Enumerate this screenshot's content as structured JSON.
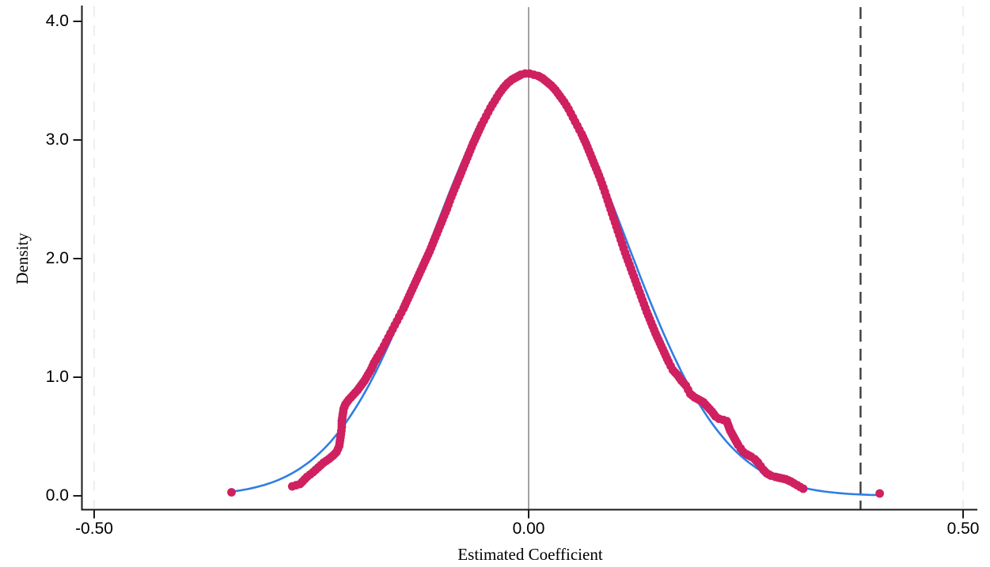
{
  "figure": {
    "background_color": "#ffffff",
    "title": "",
    "legend": null
  },
  "chart_data": {
    "type": "scatter",
    "description": "Density of estimated placebo coefficients (dots) with fitted normal density curve, vertical zero line and dashed vertical line at the actual treatment estimate",
    "title": "",
    "xlabel": "Estimated Coefficient",
    "ylabel": "Density",
    "xlim": [
      -0.515,
      0.517
    ],
    "ylim": [
      -0.12,
      4.13
    ],
    "grid": "vertical light dashed gridlines at x tick positions -0.50 and 0.50",
    "x_tick_values": [
      -0.5,
      0.0,
      0.5
    ],
    "x_tick_labels": [
      "-0.50",
      "0.00",
      "0.50"
    ],
    "y_tick_values": [
      0.0,
      1.0,
      2.0,
      3.0,
      4.0
    ],
    "y_tick_labels": [
      "0.0",
      "1.0",
      "2.0",
      "3.0",
      "4.0"
    ],
    "gridline_x_values": [
      -0.5,
      0.5
    ],
    "gridline_color": "#e9e9e9",
    "axis_color": "#1a1a1a",
    "reference_lines": [
      {
        "name": "zero-line",
        "x": 0.0,
        "style": "solid",
        "color": "#8c8c8c",
        "width": 1.6
      },
      {
        "name": "treatment-estimate-line",
        "x": 0.382,
        "style": "dashed",
        "color": "#3d3d3d",
        "width": 2.4
      }
    ],
    "series": [
      {
        "name": "normal-density-curve",
        "type": "line",
        "color": "#2e7ee3",
        "stroke_width": 2.6,
        "mean": 0.0,
        "sd": 0.1125,
        "peak_density": 3.55,
        "x_start": -0.34,
        "x_end": 0.402
      },
      {
        "name": "placebo-estimates-density",
        "type": "scatter",
        "color": "#cf2060",
        "marker": "circle",
        "marker_radius_px": 5.4,
        "points": [
          [
            -0.342,
            0.03
          ],
          [
            -0.272,
            0.08
          ],
          [
            -0.263,
            0.1
          ],
          [
            -0.255,
            0.16
          ],
          [
            -0.248,
            0.2
          ],
          [
            -0.242,
            0.24
          ],
          [
            -0.236,
            0.28
          ],
          [
            -0.23,
            0.31
          ],
          [
            -0.225,
            0.34
          ],
          [
            -0.221,
            0.37
          ],
          [
            -0.218,
            0.42
          ],
          [
            -0.217,
            0.47
          ],
          [
            -0.216,
            0.52
          ],
          [
            -0.215,
            0.58
          ],
          [
            -0.215,
            0.63
          ],
          [
            -0.214,
            0.68
          ],
          [
            -0.213,
            0.73
          ],
          [
            -0.211,
            0.77
          ],
          [
            -0.207,
            0.81
          ],
          [
            -0.202,
            0.85
          ],
          [
            -0.197,
            0.89
          ],
          [
            -0.193,
            0.93
          ],
          [
            -0.189,
            0.97
          ],
          [
            -0.185,
            1.02
          ],
          [
            -0.181,
            1.07
          ],
          [
            -0.178,
            1.12
          ],
          [
            -0.174,
            1.17
          ],
          [
            -0.169,
            1.23
          ],
          [
            -0.164,
            1.3
          ],
          [
            -0.159,
            1.37
          ],
          [
            -0.154,
            1.44
          ],
          [
            -0.149,
            1.51
          ],
          [
            -0.144,
            1.58
          ],
          [
            -0.139,
            1.66
          ],
          [
            -0.134,
            1.74
          ],
          [
            -0.129,
            1.82
          ],
          [
            -0.124,
            1.9
          ],
          [
            -0.119,
            1.98
          ],
          [
            -0.114,
            2.06
          ],
          [
            -0.109,
            2.15
          ],
          [
            -0.104,
            2.24
          ],
          [
            -0.099,
            2.33
          ],
          [
            -0.094,
            2.42
          ],
          [
            -0.089,
            2.52
          ],
          [
            -0.084,
            2.61
          ],
          [
            -0.079,
            2.7
          ],
          [
            -0.074,
            2.79
          ],
          [
            -0.069,
            2.88
          ],
          [
            -0.064,
            2.97
          ],
          [
            -0.059,
            3.05
          ],
          [
            -0.054,
            3.13
          ],
          [
            -0.049,
            3.2
          ],
          [
            -0.044,
            3.27
          ],
          [
            -0.039,
            3.33
          ],
          [
            -0.034,
            3.39
          ],
          [
            -0.029,
            3.44
          ],
          [
            -0.024,
            3.48
          ],
          [
            -0.019,
            3.51
          ],
          [
            -0.014,
            3.53
          ],
          [
            -0.009,
            3.55
          ],
          [
            -0.004,
            3.56
          ],
          [
            0.001,
            3.56
          ],
          [
            0.006,
            3.55
          ],
          [
            0.011,
            3.54
          ],
          [
            0.016,
            3.52
          ],
          [
            0.021,
            3.49
          ],
          [
            0.026,
            3.46
          ],
          [
            0.031,
            3.42
          ],
          [
            0.036,
            3.37
          ],
          [
            0.041,
            3.32
          ],
          [
            0.046,
            3.26
          ],
          [
            0.051,
            3.19
          ],
          [
            0.056,
            3.12
          ],
          [
            0.061,
            3.05
          ],
          [
            0.066,
            2.97
          ],
          [
            0.071,
            2.88
          ],
          [
            0.076,
            2.79
          ],
          [
            0.081,
            2.7
          ],
          [
            0.086,
            2.6
          ],
          [
            0.091,
            2.49
          ],
          [
            0.096,
            2.38
          ],
          [
            0.101,
            2.27
          ],
          [
            0.106,
            2.16
          ],
          [
            0.111,
            2.05
          ],
          [
            0.116,
            1.95
          ],
          [
            0.121,
            1.85
          ],
          [
            0.126,
            1.75
          ],
          [
            0.131,
            1.65
          ],
          [
            0.136,
            1.55
          ],
          [
            0.141,
            1.46
          ],
          [
            0.146,
            1.37
          ],
          [
            0.151,
            1.29
          ],
          [
            0.156,
            1.21
          ],
          [
            0.161,
            1.13
          ],
          [
            0.166,
            1.06
          ],
          [
            0.171,
            1.02
          ],
          [
            0.176,
            0.97
          ],
          [
            0.181,
            0.93
          ],
          [
            0.186,
            0.86
          ],
          [
            0.191,
            0.83
          ],
          [
            0.196,
            0.81
          ],
          [
            0.201,
            0.79
          ],
          [
            0.206,
            0.75
          ],
          [
            0.211,
            0.71
          ],
          [
            0.215,
            0.67
          ],
          [
            0.219,
            0.65
          ],
          [
            0.224,
            0.64
          ],
          [
            0.228,
            0.63
          ],
          [
            0.23,
            0.59
          ],
          [
            0.232,
            0.55
          ],
          [
            0.235,
            0.51
          ],
          [
            0.238,
            0.47
          ],
          [
            0.241,
            0.43
          ],
          [
            0.244,
            0.4
          ],
          [
            0.247,
            0.37
          ],
          [
            0.251,
            0.35
          ],
          [
            0.256,
            0.33
          ],
          [
            0.26,
            0.31
          ],
          [
            0.264,
            0.28
          ],
          [
            0.267,
            0.25
          ],
          [
            0.27,
            0.22
          ],
          [
            0.274,
            0.19
          ],
          [
            0.279,
            0.17
          ],
          [
            0.284,
            0.16
          ],
          [
            0.29,
            0.15
          ],
          [
            0.296,
            0.14
          ],
          [
            0.302,
            0.12
          ],
          [
            0.309,
            0.09
          ],
          [
            0.316,
            0.06
          ],
          [
            0.404,
            0.02
          ]
        ]
      }
    ]
  }
}
